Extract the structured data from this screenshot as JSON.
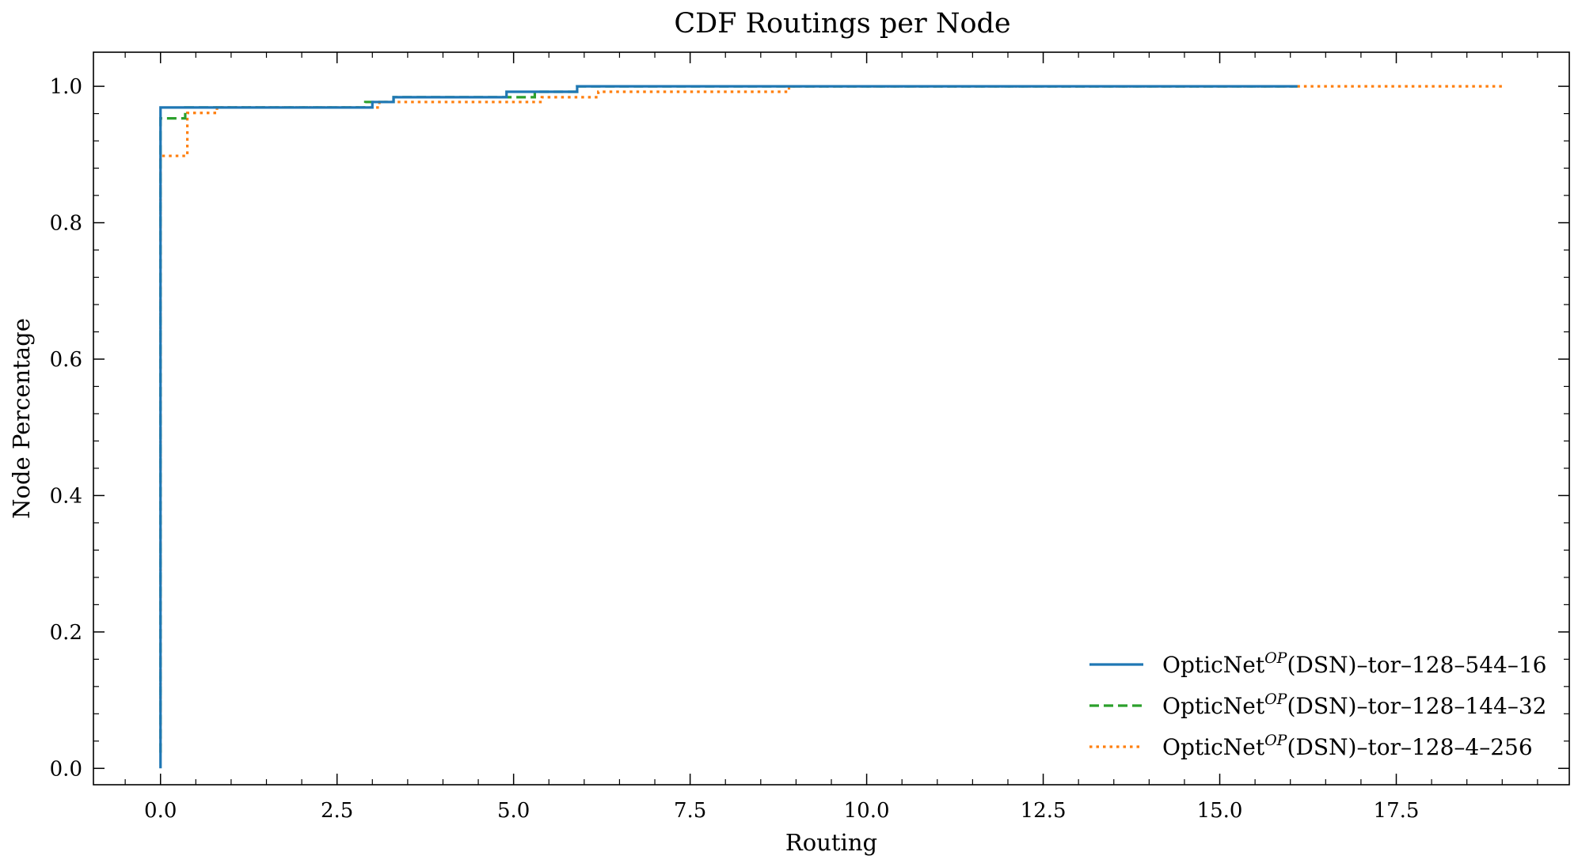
{
  "chart_data": {
    "type": "line",
    "step": true,
    "title": "CDF Routings per Node",
    "xlabel": "Routing",
    "ylabel": "Node Percentage",
    "xlim": [
      -0.95,
      19.95
    ],
    "ylim": [
      -0.024,
      1.05
    ],
    "xticks": [
      "0.0",
      "2.5",
      "5.0",
      "7.5",
      "10.0",
      "12.5",
      "15.0",
      "17.5"
    ],
    "yticks": [
      "0.0",
      "0.2",
      "0.4",
      "0.6",
      "0.8",
      "1.0"
    ],
    "legend_position": "lower-right",
    "grid": false,
    "series": [
      {
        "name_main": "OpticNet",
        "name_sup": "OP",
        "name_rest": "(DSN)–tor–128–544–16",
        "color": "#1f77b4",
        "dash": "solid",
        "points": [
          [
            0.0,
            0.0
          ],
          [
            0.0,
            0.969
          ],
          [
            3.0,
            0.969
          ],
          [
            3.0,
            0.977
          ],
          [
            3.3,
            0.977
          ],
          [
            3.3,
            0.984
          ],
          [
            4.9,
            0.984
          ],
          [
            4.9,
            0.992
          ],
          [
            5.9,
            0.992
          ],
          [
            5.9,
            1.0
          ],
          [
            16.1,
            1.0
          ]
        ]
      },
      {
        "name_main": "OpticNet",
        "name_sup": "OP",
        "name_rest": "(DSN)–tor–128–144–32",
        "color": "#2ca02c",
        "dash": "dashed",
        "points": [
          [
            0.0,
            0.023
          ],
          [
            0.0,
            0.953
          ],
          [
            0.35,
            0.953
          ],
          [
            0.35,
            0.969
          ],
          [
            2.9,
            0.969
          ],
          [
            2.9,
            0.977
          ],
          [
            3.3,
            0.977
          ],
          [
            3.3,
            0.984
          ],
          [
            5.3,
            0.984
          ],
          [
            5.3,
            0.992
          ],
          [
            5.9,
            0.992
          ],
          [
            5.9,
            1.0
          ],
          [
            16.1,
            1.0
          ]
        ]
      },
      {
        "name_main": "OpticNet",
        "name_sup": "OP",
        "name_rest": "(DSN)–tor–128–4–256",
        "color": "#ff7f0e",
        "dash": "dotted",
        "points": [
          [
            0.0,
            0.023
          ],
          [
            0.0,
            0.898
          ],
          [
            0.38,
            0.898
          ],
          [
            0.38,
            0.961
          ],
          [
            0.8,
            0.961
          ],
          [
            0.8,
            0.969
          ],
          [
            3.1,
            0.969
          ],
          [
            3.1,
            0.977
          ],
          [
            5.4,
            0.977
          ],
          [
            5.4,
            0.984
          ],
          [
            6.2,
            0.984
          ],
          [
            6.2,
            0.992
          ],
          [
            8.9,
            0.992
          ],
          [
            8.9,
            1.0
          ],
          [
            19.0,
            1.0
          ]
        ]
      }
    ]
  }
}
